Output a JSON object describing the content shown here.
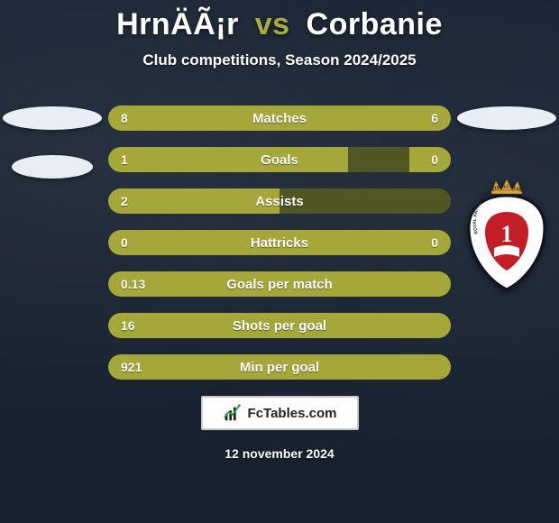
{
  "header": {
    "player1": "HrnÄÃ¡r",
    "vs": "vs",
    "player2": "Corbanie",
    "subtitle": "Club competitions, Season 2024/2025"
  },
  "colors": {
    "background": "#1a2332",
    "bar_track": "#515723",
    "bar_fill": "#a6a739",
    "accent": "#a9ac3a",
    "text": "#ffffff",
    "logo_bg": "#ffffff",
    "logo_border": "#c9c9c9"
  },
  "stats": [
    {
      "label": "Matches",
      "left_value": "8",
      "right_value": "6",
      "left_pct": 57,
      "right_pct": 43,
      "show_right": true
    },
    {
      "label": "Goals",
      "left_value": "1",
      "right_value": "0",
      "left_pct": 70,
      "right_pct": 12,
      "show_right": true
    },
    {
      "label": "Assists",
      "left_value": "2",
      "right_value": "",
      "left_pct": 50,
      "right_pct": 0,
      "show_right": false
    },
    {
      "label": "Hattricks",
      "left_value": "0",
      "right_value": "0",
      "left_pct": 50,
      "right_pct": 50,
      "show_right": true
    },
    {
      "label": "Goals per match",
      "left_value": "0.13",
      "right_value": "",
      "left_pct": 100,
      "right_pct": 0,
      "show_right": false
    },
    {
      "label": "Shots per goal",
      "left_value": "16",
      "right_value": "",
      "left_pct": 100,
      "right_pct": 0,
      "show_right": false
    },
    {
      "label": "Min per goal",
      "left_value": "921",
      "right_value": "",
      "left_pct": 100,
      "right_pct": 0,
      "show_right": false
    }
  ],
  "crest": {
    "top_text": "ROYAL ANTWERP FOOTBALL CLUB",
    "number": "1",
    "ring_color": "#ffffff",
    "center_color": "#c31e25",
    "outline_color": "#1a2332",
    "crown_color": "#d9a23a"
  },
  "footer": {
    "site": "FcTables.com",
    "date": "12 november 2024"
  }
}
